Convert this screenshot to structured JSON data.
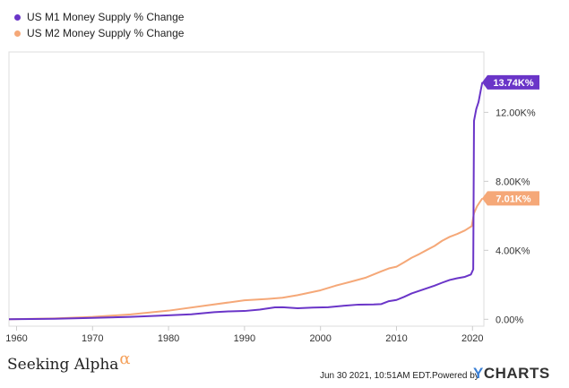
{
  "chart_data": {
    "type": "line",
    "title": "",
    "xlabel": "",
    "ylabel": "",
    "x_ticks": [
      "1960",
      "1970",
      "1980",
      "1990",
      "2000",
      "2010",
      "2020"
    ],
    "y_ticks": [
      "0.00%",
      "4.00K%",
      "8.00K%",
      "12.00K%"
    ],
    "xlim": [
      1959,
      2021.5
    ],
    "ylim": [
      -400,
      15500
    ],
    "grid": false,
    "legend_position": "top-left",
    "series": [
      {
        "name": "US M1 Money Supply % Change",
        "color": "#6a35c8",
        "end_label": "13.74K%",
        "points": [
          [
            1959,
            0
          ],
          [
            1965,
            30
          ],
          [
            1970,
            80
          ],
          [
            1975,
            140
          ],
          [
            1980,
            230
          ],
          [
            1983,
            290
          ],
          [
            1986,
            410
          ],
          [
            1988,
            460
          ],
          [
            1990,
            480
          ],
          [
            1992,
            560
          ],
          [
            1994,
            690
          ],
          [
            1995,
            700
          ],
          [
            1997,
            640
          ],
          [
            1999,
            680
          ],
          [
            2001,
            700
          ],
          [
            2003,
            780
          ],
          [
            2005,
            850
          ],
          [
            2007,
            860
          ],
          [
            2008,
            880
          ],
          [
            2009,
            1050
          ],
          [
            2010,
            1120
          ],
          [
            2011,
            1300
          ],
          [
            2012,
            1500
          ],
          [
            2013,
            1650
          ],
          [
            2014,
            1800
          ],
          [
            2015,
            1950
          ],
          [
            2016,
            2120
          ],
          [
            2017,
            2280
          ],
          [
            2018,
            2380
          ],
          [
            2019,
            2460
          ],
          [
            2019.8,
            2600
          ],
          [
            2020.1,
            2900
          ],
          [
            2020.2,
            11500
          ],
          [
            2020.5,
            12200
          ],
          [
            2020.8,
            12600
          ],
          [
            2021.1,
            13300
          ],
          [
            2021.3,
            13740
          ]
        ]
      },
      {
        "name": "US M2 Money Supply % Change",
        "color": "#f5a878",
        "end_label": "7.01K%",
        "points": [
          [
            1959,
            0
          ],
          [
            1965,
            50
          ],
          [
            1970,
            140
          ],
          [
            1975,
            280
          ],
          [
            1980,
            500
          ],
          [
            1985,
            800
          ],
          [
            1990,
            1100
          ],
          [
            1993,
            1180
          ],
          [
            1995,
            1250
          ],
          [
            1997,
            1400
          ],
          [
            2000,
            1680
          ],
          [
            2002,
            1950
          ],
          [
            2004,
            2180
          ],
          [
            2006,
            2420
          ],
          [
            2008,
            2780
          ],
          [
            2009,
            2950
          ],
          [
            2010,
            3050
          ],
          [
            2011,
            3300
          ],
          [
            2012,
            3570
          ],
          [
            2013,
            3780
          ],
          [
            2014,
            4020
          ],
          [
            2015,
            4250
          ],
          [
            2016,
            4550
          ],
          [
            2017,
            4780
          ],
          [
            2018,
            4950
          ],
          [
            2019,
            5150
          ],
          [
            2019.9,
            5400
          ],
          [
            2020.2,
            6150
          ],
          [
            2020.6,
            6550
          ],
          [
            2021.0,
            6820
          ],
          [
            2021.3,
            7010
          ]
        ]
      }
    ]
  },
  "footer": {
    "brand": "Seeking Alpha",
    "brand_mark": "α",
    "timestamp": "Jun 30 2021, 10:51AM EDT.",
    "powered_by": "Powered by",
    "provider_y": "Y",
    "provider_rest": "CHARTS"
  }
}
